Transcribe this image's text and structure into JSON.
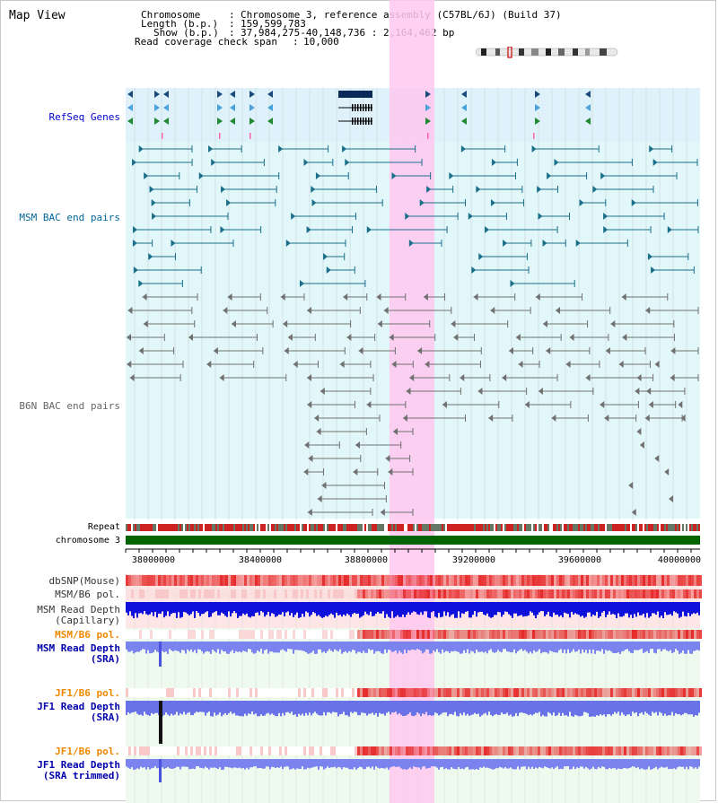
{
  "title": "Map View",
  "info": {
    "chromosome_label": "Chromosome",
    "chromosome_value": "Chromosome 3, reference assembly (C57BL/6J) (Build 37)",
    "length_label": "Length (b.p.)",
    "length_value": "159,599,783",
    "show_label": "Show (b.p.)",
    "show_value": "37,984,275-40,148,736 : 2,164,462 bp",
    "coverage_label": "Read coverage check span",
    "coverage_value": "10,000"
  },
  "tracks": {
    "refseq": "RefSeq Genes",
    "msm_bac": "MSM BAC end pairs",
    "b6n_bac": "B6N BAC end pairs",
    "repeat": "Repeat",
    "chromosome": "chromosome 3",
    "dbsnp": "dbSNP(Mouse)",
    "msm_b6_pol": "MSM/B6 pol.",
    "msm_depth_cap_1": "MSM Read Depth",
    "msm_depth_cap_2": "(Capillary)",
    "msm_b6_pol_2": "MSM/B6 pol.",
    "msm_depth_sra_1": "MSM Read Depth",
    "msm_depth_sra_2": "(SRA)",
    "jf1_b6_pol": "JF1/B6 pol.",
    "jf1_depth_sra_1": "JF1 Read Depth",
    "jf1_depth_sra_2": "(SRA)",
    "jf1_b6_pol_2": "JF1/B6 pol.",
    "jf1_depth_trim_1": "JF1 Read Depth",
    "jf1_depth_trim_2": "(SRA trimmed)"
  },
  "axis_ticks": [
    "38000000",
    "38400000",
    "38800000",
    "39200000",
    "39600000",
    "40000000"
  ],
  "colors": {
    "refseq_label": "#0000cc",
    "msm_bac_label": "#006699",
    "b6n_bac_label": "#666666",
    "pol_label": "#ee8800",
    "depth_label": "#0000aa",
    "highlight": "#ffc8ee",
    "chromosome_bar": "#006400"
  }
}
